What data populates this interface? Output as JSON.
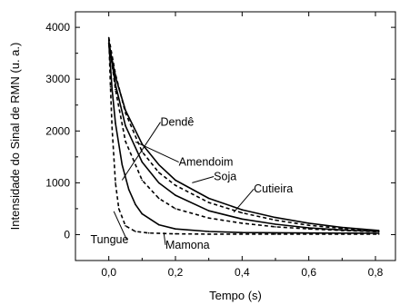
{
  "chart_data": {
    "type": "line",
    "xlabel": "Tempo (s)",
    "ylabel": "Intensidade do Sinal de RMN (u. a.)",
    "xlim": [
      -0.1,
      0.86
    ],
    "ylim": [
      -500,
      4300
    ],
    "x_ticks": [
      {
        "value": 0.0,
        "label": "0,0"
      },
      {
        "value": 0.2,
        "label": "0,2"
      },
      {
        "value": 0.4,
        "label": "0,4"
      },
      {
        "value": 0.6,
        "label": "0,6"
      },
      {
        "value": 0.8,
        "label": "0,8"
      }
    ],
    "y_ticks": [
      {
        "value": 0,
        "label": "0"
      },
      {
        "value": 1000,
        "label": "1000"
      },
      {
        "value": 2000,
        "label": "2000"
      },
      {
        "value": 3000,
        "label": "3000"
      },
      {
        "value": 4000,
        "label": "4000"
      }
    ],
    "series": [
      {
        "name": "Dendê",
        "style": "solid",
        "x": [
          0.0,
          0.02,
          0.05,
          0.1,
          0.15,
          0.2,
          0.3,
          0.4,
          0.5,
          0.6,
          0.7,
          0.81
        ],
        "y": [
          3700,
          3050,
          2400,
          1750,
          1350,
          1050,
          700,
          480,
          330,
          220,
          140,
          80
        ]
      },
      {
        "name": "Amendoim",
        "style": "dashed",
        "x": [
          0.0,
          0.02,
          0.05,
          0.1,
          0.15,
          0.2,
          0.3,
          0.4,
          0.5,
          0.6,
          0.7,
          0.81
        ],
        "y": [
          3800,
          3100,
          2350,
          1600,
          1200,
          950,
          620,
          420,
          280,
          180,
          120,
          70
        ]
      },
      {
        "name": "Soja",
        "style": "solid",
        "x": [
          0.0,
          0.02,
          0.05,
          0.1,
          0.15,
          0.2,
          0.3,
          0.4,
          0.5,
          0.6,
          0.7,
          0.81
        ],
        "y": [
          3700,
          2900,
          2100,
          1400,
          1000,
          760,
          460,
          300,
          200,
          130,
          90,
          60
        ]
      },
      {
        "name": "Cutieira",
        "style": "dashed",
        "x": [
          0.0,
          0.02,
          0.05,
          0.1,
          0.15,
          0.2,
          0.3,
          0.4,
          0.5,
          0.6,
          0.7,
          0.81
        ],
        "y": [
          3750,
          2800,
          1800,
          1050,
          700,
          500,
          320,
          220,
          150,
          110,
          80,
          55
        ]
      },
      {
        "name": "Tungue",
        "style": "solid",
        "x": [
          0.0,
          0.01,
          0.02,
          0.04,
          0.06,
          0.08,
          0.1,
          0.15,
          0.2,
          0.3,
          0.4,
          0.6,
          0.81
        ],
        "y": [
          3700,
          2800,
          2150,
          1350,
          870,
          580,
          400,
          190,
          110,
          60,
          40,
          30,
          25
        ]
      },
      {
        "name": "Mamona",
        "style": "dashed",
        "x": [
          0.0,
          0.005,
          0.01,
          0.02,
          0.03,
          0.05,
          0.08,
          0.12,
          0.2,
          0.3,
          0.5,
          0.81
        ],
        "y": [
          3800,
          2850,
          2050,
          1000,
          500,
          170,
          60,
          30,
          15,
          10,
          10,
          10
        ]
      }
    ],
    "annotations": [
      {
        "label": "Dendê",
        "text_x": 0.155,
        "text_y": 2100,
        "arrow_x": 0.04,
        "arrow_y": 1050
      },
      {
        "label": "Amendoim",
        "text_x": 0.21,
        "text_y": 1330,
        "arrow_x": 0.08,
        "arrow_y": 1790
      },
      {
        "label": "Soja",
        "text_x": 0.315,
        "text_y": 1050,
        "arrow_x": 0.25,
        "arrow_y": 1000
      },
      {
        "label": "Cutieira",
        "text_x": 0.435,
        "text_y": 810,
        "arrow_x": 0.375,
        "arrow_y": 430
      },
      {
        "label": "Tungue",
        "text_x": -0.055,
        "text_y": -170,
        "arrow_x": 0.015,
        "arrow_y": 450
      },
      {
        "label": "Mamona",
        "text_x": 0.17,
        "text_y": -270,
        "arrow_x": 0.165,
        "arrow_y": 40
      }
    ],
    "grid": false,
    "legend": "none"
  }
}
